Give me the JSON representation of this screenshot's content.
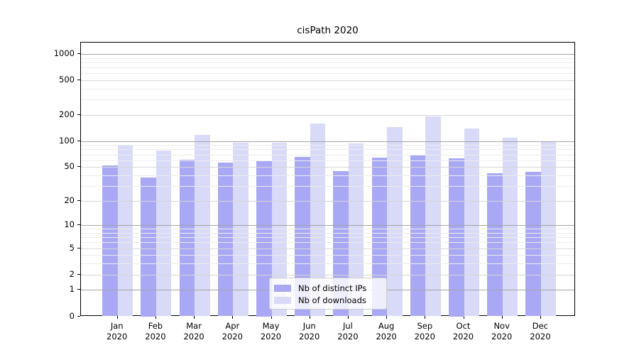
{
  "chart_data": {
    "type": "bar",
    "title": "cisPath 2020",
    "categories": [
      "Jan",
      "Feb",
      "Mar",
      "Apr",
      "May",
      "Jun",
      "Jul",
      "Aug",
      "Sep",
      "Oct",
      "Nov",
      "Dec"
    ],
    "category_year": "2020",
    "series": [
      {
        "name": "Nb of distinct IPs",
        "color": "#a8a8f5",
        "values": [
          52,
          38,
          61,
          56,
          59,
          65,
          45,
          64,
          69,
          63,
          42,
          44
        ]
      },
      {
        "name": "Nb of downloads",
        "color": "#d9d9f8",
        "values": [
          88,
          78,
          117,
          95,
          95,
          158,
          94,
          144,
          191,
          139,
          110,
          97
        ]
      }
    ],
    "xlabel": "",
    "ylabel": "",
    "yscale": "log1p",
    "yticks": [
      0,
      1,
      2,
      5,
      10,
      20,
      50,
      100,
      200,
      500,
      1000
    ],
    "ylim": [
      0,
      1348
    ],
    "grid": "horizontal",
    "legend_position": "lower-center"
  }
}
